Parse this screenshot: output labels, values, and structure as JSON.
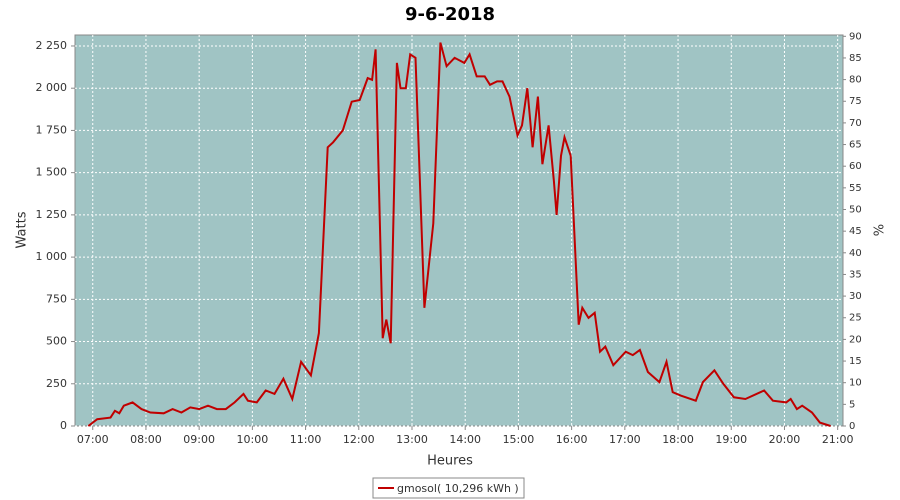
{
  "chart_data": {
    "type": "line",
    "title": "9-6-2018",
    "x_label": "Heures",
    "y_label": "Watts",
    "y2_label": "%",
    "xlim": [
      "06:40",
      "21:06"
    ],
    "xticks": [
      "07:00",
      "08:00",
      "09:00",
      "10:00",
      "11:00",
      "12:00",
      "13:00",
      "14:00",
      "15:00",
      "16:00",
      "17:00",
      "18:00",
      "19:00",
      "20:00",
      "21:00"
    ],
    "ylim": [
      0,
      2315
    ],
    "yticks": [
      0,
      250,
      500,
      750,
      {
        "value": 1000,
        "label": "1 000"
      },
      {
        "value": 1250,
        "label": "1 250"
      },
      {
        "value": 1500,
        "label": "1 500"
      },
      {
        "value": 1750,
        "label": "1 750"
      },
      {
        "value": 2000,
        "label": "2 000"
      },
      {
        "value": 2250,
        "label": "2 250"
      }
    ],
    "y2lim": [
      0,
      90.3
    ],
    "y2ticks": [
      0,
      5,
      10,
      15,
      20,
      25,
      30,
      35,
      40,
      45,
      50,
      55,
      60,
      65,
      70,
      75,
      80,
      85,
      90
    ],
    "grid": true,
    "background": "#a0c4c4",
    "x": [
      "06:55",
      "07:05",
      "07:20",
      "07:25",
      "07:30",
      "07:35",
      "07:45",
      "07:55",
      "08:05",
      "08:20",
      "08:30",
      "08:40",
      "08:50",
      "09:00",
      "09:10",
      "09:20",
      "09:30",
      "09:40",
      "09:50",
      "09:55",
      "10:05",
      "10:15",
      "10:25",
      "10:35",
      "10:45",
      "10:55",
      "11:06",
      "11:15",
      "11:25",
      "11:31",
      "11:42",
      "11:52",
      "12:01",
      "12:10",
      "12:15",
      "12:19",
      "12:27",
      "12:31",
      "12:36",
      "12:43",
      "12:47",
      "12:53",
      "12:58",
      "13:04",
      "13:14",
      "13:21",
      "13:24",
      "13:32",
      "13:39",
      "13:48",
      "13:59",
      "14:05",
      "14:13",
      "14:22",
      "14:28",
      "14:36",
      "14:42",
      "14:50",
      "14:59",
      "15:04",
      "15:10",
      "15:16",
      "15:22",
      "15:27",
      "15:34",
      "15:40",
      "15:43",
      "15:48",
      "15:52",
      "15:59",
      "16:08",
      "16:12",
      "16:19",
      "16:26",
      "16:32",
      "16:38",
      "16:47",
      "17:01",
      "17:09",
      "17:17",
      "17:26",
      "17:39",
      "17:47",
      "17:54",
      "18:03",
      "18:20",
      "18:28",
      "18:41",
      "18:51",
      "19:03",
      "19:16",
      "19:37",
      "19:47",
      "20:02",
      "20:07",
      "20:14",
      "20:20",
      "20:31",
      "20:40",
      "20:52"
    ],
    "series": [
      {
        "name": "gmosol( 10,296 kWh )",
        "color": "#c00000",
        "values": [
          0,
          40,
          50,
          90,
          75,
          120,
          140,
          100,
          80,
          75,
          100,
          80,
          110,
          100,
          120,
          100,
          100,
          140,
          190,
          150,
          140,
          210,
          190,
          280,
          160,
          380,
          300,
          550,
          1650,
          1680,
          1750,
          1920,
          1930,
          2060,
          2050,
          2230,
          520,
          630,
          490,
          2150,
          2000,
          2000,
          2200,
          2180,
          700,
          1050,
          1200,
          2270,
          2130,
          2180,
          2150,
          2200,
          2070,
          2070,
          2020,
          2040,
          2040,
          1950,
          1720,
          1780,
          2000,
          1650,
          1950,
          1550,
          1780,
          1450,
          1250,
          1600,
          1710,
          1600,
          600,
          700,
          640,
          670,
          440,
          470,
          360,
          440,
          420,
          450,
          320,
          260,
          380,
          200,
          180,
          150,
          260,
          330,
          250,
          170,
          160,
          210,
          150,
          140,
          160,
          100,
          120,
          80,
          20,
          0
        ]
      }
    ]
  }
}
